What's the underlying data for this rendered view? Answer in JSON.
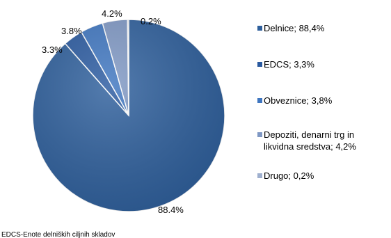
{
  "chart_data": {
    "type": "pie",
    "slices": [
      {
        "name": "Delnice; 88,4%",
        "value": 88.4,
        "label": "88.4%",
        "color": "#2e5f9c"
      },
      {
        "name": "EDCS; 3,3%",
        "value": 3.3,
        "label": "3.3%",
        "color": "#2a5aa0"
      },
      {
        "name": "Obveznice; 3,8%",
        "value": 3.8,
        "label": "3.8%",
        "color": "#3f76c0"
      },
      {
        "name": "Depoziti, denarni trg in likvidna sredstva; 4,2%",
        "value": 4.2,
        "label": "4.2%",
        "color": "#7f98c4"
      },
      {
        "name": "Drugo; 0,2%",
        "value": 0.2,
        "label": "0.2%",
        "color": "#9fb0cf"
      }
    ],
    "legend_position": "right"
  },
  "legend": {
    "items": [
      {
        "line1": "Delnice; 88,4%",
        "line2": ""
      },
      {
        "line1": "EDCS; 3,3%",
        "line2": ""
      },
      {
        "line1": "Obveznice; 3,8%",
        "line2": ""
      },
      {
        "line1": "Depoziti, denarni trg in",
        "line2": "likvidna sredstva; 4,2%"
      },
      {
        "line1": "Drugo; 0,2%",
        "line2": ""
      }
    ]
  },
  "footnote": "EDCS-Enote delniških  ciljnih skladov"
}
